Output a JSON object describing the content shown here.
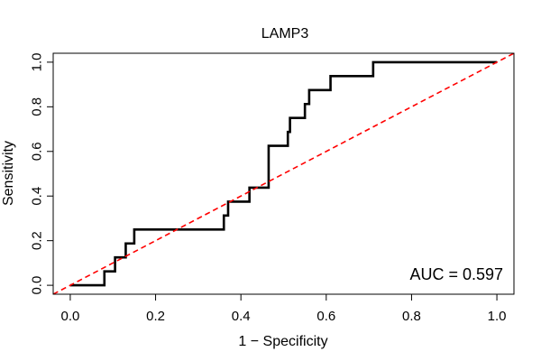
{
  "chart_data": {
    "type": "line",
    "title": "LAMP3",
    "xlabel": "1 − Specificity",
    "ylabel": "Sensitivity",
    "xlim": [
      -0.04,
      1.04
    ],
    "ylim": [
      -0.04,
      1.04
    ],
    "x_ticks": [
      0,
      0.2,
      0.4,
      0.6,
      0.8,
      1
    ],
    "y_ticks": [
      0,
      0.2,
      0.4,
      0.6,
      0.8,
      1
    ],
    "x_tick_labels": [
      "0.0",
      "0.2",
      "0.4",
      "0.6",
      "0.8",
      "1.0"
    ],
    "y_tick_labels": [
      "0.0",
      "0.2",
      "0.4",
      "0.6",
      "0.8",
      "1.0"
    ],
    "grid": false,
    "annotation": "AUC = 0.597",
    "colors": {
      "roc": "#000000",
      "reference": "#ff0000"
    },
    "series": [
      {
        "role": "roc-curve",
        "style": "solid",
        "x": [
          0,
          0.08,
          0.08,
          0.105,
          0.105,
          0.13,
          0.13,
          0.15,
          0.15,
          0.36,
          0.36,
          0.37,
          0.37,
          0.42,
          0.42,
          0.465,
          0.465,
          0.51,
          0.51,
          0.515,
          0.515,
          0.55,
          0.55,
          0.56,
          0.56,
          0.61,
          0.61,
          0.71,
          0.71,
          1.0
        ],
        "y": [
          0,
          0,
          0.0625,
          0.0625,
          0.125,
          0.125,
          0.1875,
          0.1875,
          0.25,
          0.25,
          0.3125,
          0.3125,
          0.375,
          0.375,
          0.4375,
          0.4375,
          0.625,
          0.625,
          0.6875,
          0.6875,
          0.75,
          0.75,
          0.8125,
          0.8125,
          0.875,
          0.875,
          0.9375,
          0.9375,
          1.0,
          1.0
        ]
      },
      {
        "role": "reference-diagonal",
        "style": "dashed",
        "x": [
          -0.04,
          1.04
        ],
        "y": [
          -0.04,
          1.04
        ]
      }
    ]
  }
}
